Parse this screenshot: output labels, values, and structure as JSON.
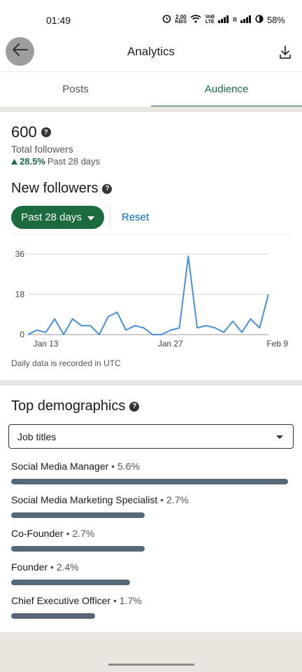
{
  "status_bar": {
    "time": "01:49",
    "net_speed_value": "2.00",
    "net_speed_unit": "KB/S",
    "signal_label_1": "VoB LTE",
    "signal_label_2": "R",
    "battery": "58%"
  },
  "header": {
    "title": "Analytics"
  },
  "tabs": [
    {
      "label": "Posts",
      "active": false
    },
    {
      "label": "Audience",
      "active": true
    }
  ],
  "followers": {
    "total": "600",
    "total_label": "Total followers",
    "growth_pct": "28.5%",
    "growth_period": "Past 28 days"
  },
  "new_followers": {
    "title": "New followers",
    "range_button": "Past 28 days",
    "reset_label": "Reset",
    "note": "Daily data is recorded in UTC"
  },
  "chart_data": {
    "type": "line",
    "title": "",
    "xlabel": "",
    "ylabel": "",
    "ylim": [
      0,
      36
    ],
    "yticks": [
      "0",
      "18",
      "36"
    ],
    "xtick_labels": [
      "Jan 13",
      "Jan 27",
      "Feb 9"
    ],
    "xtick_indices": [
      2,
      16,
      28
    ],
    "series": [
      {
        "values": [
          0,
          2,
          1,
          7,
          0,
          7,
          4,
          4,
          0,
          8,
          10,
          2,
          4,
          3,
          0,
          0,
          2,
          3,
          35,
          3,
          4,
          3,
          1,
          6,
          1,
          7,
          3,
          18
        ],
        "color": "#4a90d9"
      }
    ],
    "grid": true
  },
  "demographics": {
    "title": "Top demographics",
    "selected_filter": "Job titles",
    "items": [
      {
        "label": "Social Media Manager",
        "pct": "5.6%",
        "value": 5.6
      },
      {
        "label": "Social Media Marketing Specialist",
        "pct": "2.7%",
        "value": 2.7
      },
      {
        "label": "Co-Founder",
        "pct": "2.7%",
        "value": 2.7
      },
      {
        "label": "Founder",
        "pct": "2.4%",
        "value": 2.4
      },
      {
        "label": "Chief Executive Officer",
        "pct": "1.7%",
        "value": 1.7
      }
    ]
  },
  "colors": {
    "accent_green": "#1c6b3f",
    "link_blue": "#0a66c2",
    "bar_slate": "#56687a",
    "line_blue": "#4a90d9"
  }
}
